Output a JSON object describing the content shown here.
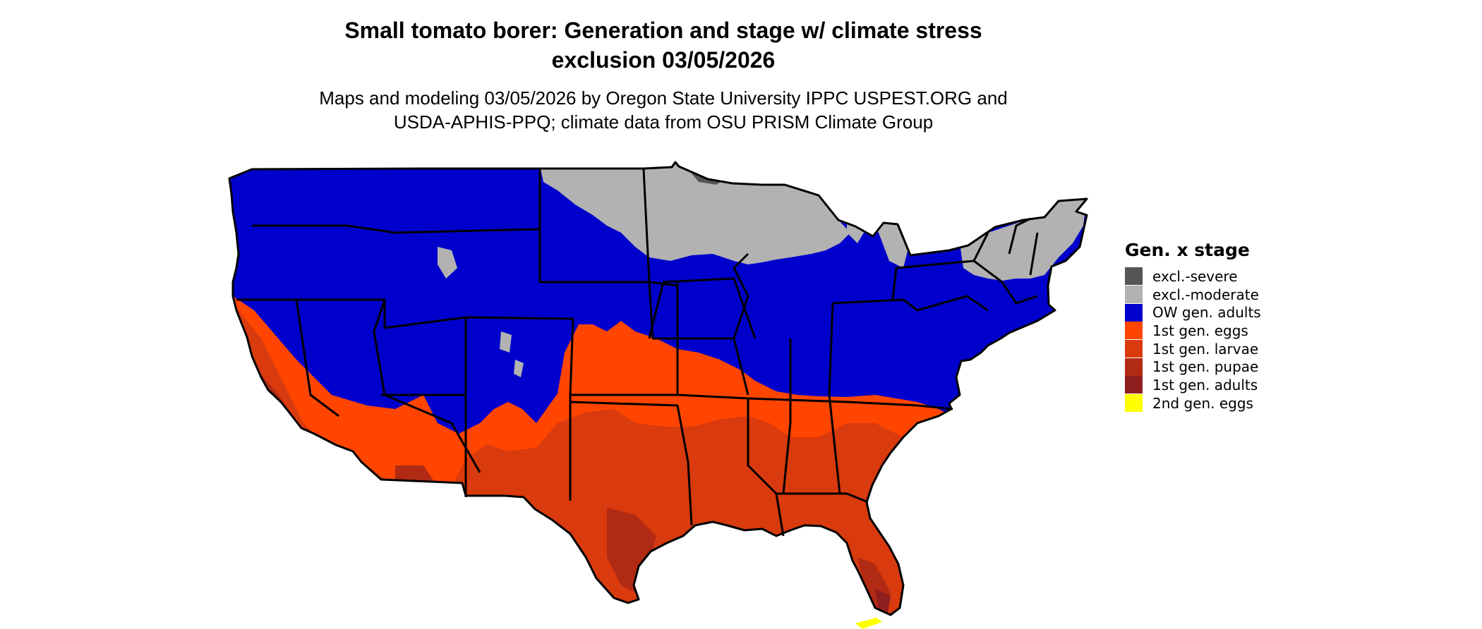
{
  "title_line1": "Small tomato borer: Generation and stage w/ climate stress",
  "title_line2": "exclusion 03/05/2026",
  "subtitle_line1": "Maps and modeling 03/05/2026 by Oregon State University IPPC USPEST.ORG and",
  "subtitle_line2": "USDA-APHIS-PPQ; climate data from OSU PRISM Climate Group",
  "legend": {
    "title": "Gen. x stage",
    "items": [
      {
        "label": "excl.-severe",
        "color": "#555555"
      },
      {
        "label": "excl.-moderate",
        "color": "#b2b2b2"
      },
      {
        "label": "OW gen. adults",
        "color": "#0000cc"
      },
      {
        "label": "1st gen. eggs",
        "color": "#ff4500"
      },
      {
        "label": "1st gen. larvae",
        "color": "#d93a0e"
      },
      {
        "label": "1st gen. pupae",
        "color": "#b12a14"
      },
      {
        "label": "1st gen. adults",
        "color": "#8f1e1e"
      },
      {
        "label": "2nd gen. eggs",
        "color": "#ffff00"
      }
    ]
  }
}
